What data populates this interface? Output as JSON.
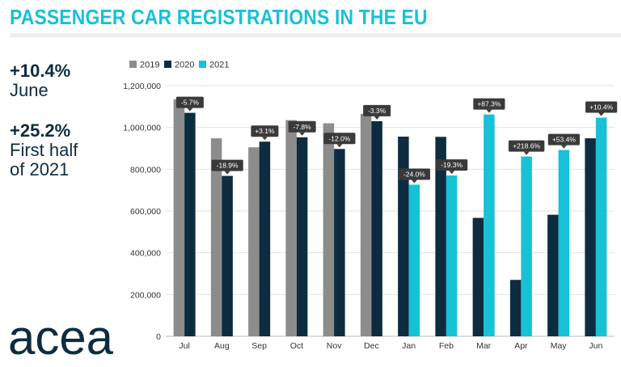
{
  "header": {
    "title": "PASSENGER CAR REGISTRATIONS IN THE EU"
  },
  "stats": {
    "june_value": "+10.4%",
    "june_label": "June",
    "half_value": "+25.2%",
    "half_label_line1": "First half",
    "half_label_line2": "of 2021"
  },
  "logo": {
    "text": "acea"
  },
  "colors": {
    "title": "#17c1d6",
    "y2019": "#8c8c8c",
    "y2020": "#0d2c3f",
    "y2021": "#17c1d6",
    "label_bg": "#3a3a3a",
    "text_dark": "#0d2c3f"
  },
  "chart_data": {
    "type": "bar",
    "title": "PASSENGER CAR REGISTRATIONS IN THE EU",
    "xlabel": "",
    "ylabel": "",
    "ylim": [
      0,
      1200000
    ],
    "yticks": [
      0,
      200000,
      400000,
      600000,
      800000,
      1000000,
      1200000
    ],
    "ytick_labels": [
      "0",
      "200,000",
      "400,000",
      "600,000",
      "800,000",
      "1,000,000",
      "1,200,000"
    ],
    "grid": true,
    "legend": "top-left",
    "categories": [
      "Jul",
      "Aug",
      "Sep",
      "Oct",
      "Nov",
      "Dec",
      "Jan",
      "Feb",
      "Mar",
      "Apr",
      "May",
      "Jun"
    ],
    "series": [
      {
        "name": "2019",
        "values": [
          1135000,
          948000,
          905000,
          1035000,
          1020000,
          1065000,
          null,
          null,
          null,
          null,
          null,
          null
        ]
      },
      {
        "name": "2020",
        "values": [
          1070000,
          768000,
          932000,
          953000,
          897000,
          1030000,
          956000,
          955000,
          567000,
          270000,
          582000,
          948000
        ]
      },
      {
        "name": "2021",
        "values": [
          null,
          null,
          null,
          null,
          null,
          null,
          726000,
          770000,
          1062000,
          861000,
          892000,
          1047000
        ]
      }
    ],
    "change_labels": [
      "-5.7%",
      "-18.9%",
      "+3.1%",
      "-7.8%",
      "-12.0%",
      "-3.3%",
      "-24.0%",
      "-19.3%",
      "+87.3%",
      "+218.6%",
      "+53.4%",
      "+10.4%"
    ],
    "change_label_series": [
      "2020",
      "2020",
      "2020",
      "2020",
      "2020",
      "2020",
      "2021",
      "2021",
      "2021",
      "2021",
      "2021",
      "2021"
    ]
  }
}
